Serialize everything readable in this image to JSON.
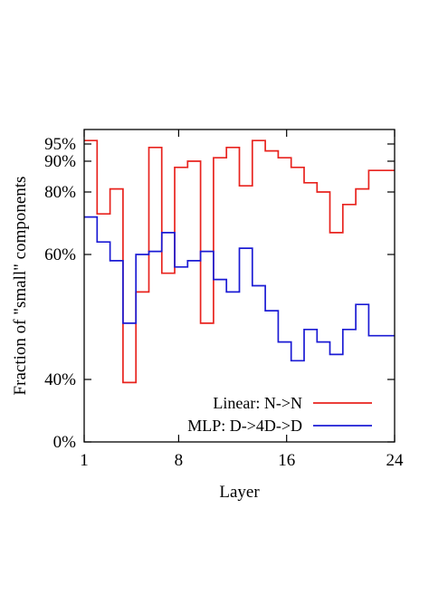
{
  "chart_data": {
    "type": "line",
    "step": true,
    "xlabel": "Layer",
    "ylabel": "Fraction of \"small\" components",
    "xlim": [
      1,
      24
    ],
    "ylim": [
      0,
      97
    ],
    "x_ticks": [
      1,
      8,
      16,
      24
    ],
    "y_ticks": [
      {
        "value": 0,
        "label": "0%"
      },
      {
        "value": 40,
        "label": "40%"
      },
      {
        "value": 60,
        "label": "60%"
      },
      {
        "value": 80,
        "label": "80%"
      },
      {
        "value": 90,
        "label": "90%"
      },
      {
        "value": 95,
        "label": "95%"
      }
    ],
    "grid": false,
    "legend_position": "bottom-right",
    "series": [
      {
        "name": "Linear: N->N",
        "color": "#e8231e",
        "x": [
          1,
          2,
          3,
          4,
          5,
          6,
          7,
          8,
          9,
          10,
          11,
          12,
          13,
          14,
          15,
          16,
          17,
          18,
          19,
          20,
          21,
          22,
          23,
          24
        ],
        "values": [
          96,
          73,
          81,
          38,
          54,
          94,
          57,
          88,
          90,
          49,
          91,
          94,
          82,
          96,
          93,
          91,
          88,
          83,
          80,
          67,
          76,
          81,
          87,
          87
        ]
      },
      {
        "name": "MLP: D->4D->D",
        "color": "#1b1bd4",
        "x": [
          1,
          2,
          3,
          4,
          5,
          6,
          7,
          8,
          9,
          10,
          11,
          12,
          13,
          14,
          15,
          16,
          17,
          18,
          19,
          20,
          21,
          22,
          23,
          24
        ],
        "values": [
          72,
          64,
          59,
          49,
          60,
          61,
          67,
          58,
          59,
          61,
          56,
          54,
          62,
          55,
          51,
          46,
          43,
          48,
          46,
          44,
          48,
          52,
          47,
          47
        ]
      }
    ]
  }
}
